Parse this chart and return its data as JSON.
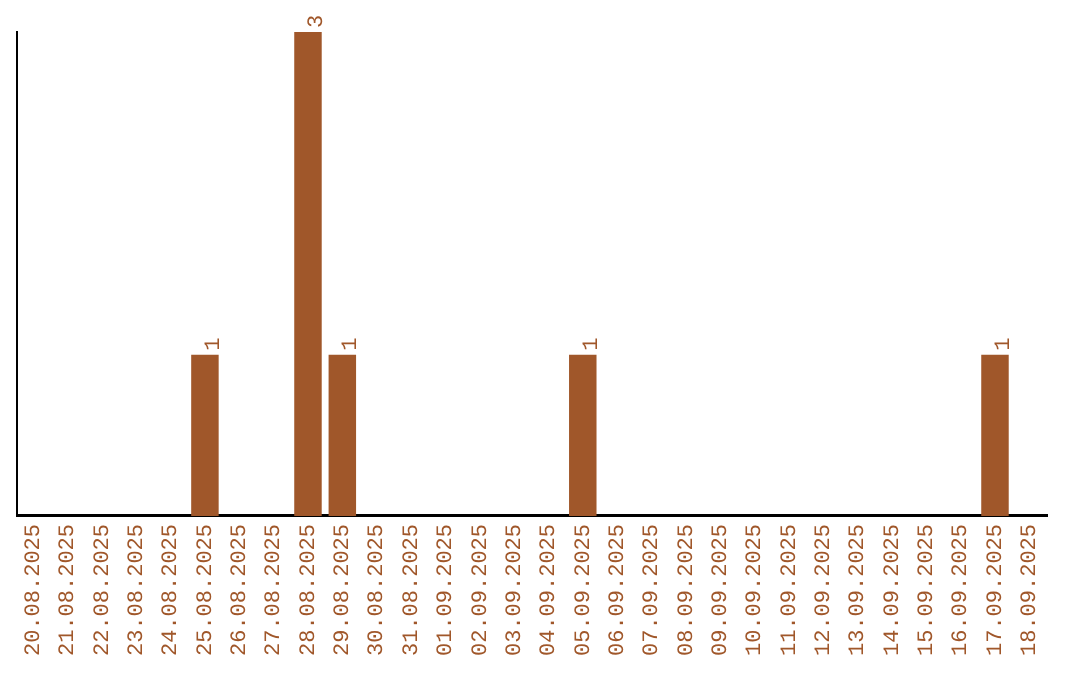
{
  "chart_data": {
    "type": "bar",
    "categories": [
      "20.08.2025",
      "21.08.2025",
      "22.08.2025",
      "23.08.2025",
      "24.08.2025",
      "25.08.2025",
      "26.08.2025",
      "27.08.2025",
      "28.08.2025",
      "29.08.2025",
      "30.08.2025",
      "31.08.2025",
      "01.09.2025",
      "02.09.2025",
      "03.09.2025",
      "04.09.2025",
      "05.09.2025",
      "06.09.2025",
      "07.09.2025",
      "08.09.2025",
      "09.09.2025",
      "10.09.2025",
      "11.09.2025",
      "12.09.2025",
      "13.09.2025",
      "14.09.2025",
      "15.09.2025",
      "16.09.2025",
      "17.09.2025",
      "18.09.2025"
    ],
    "values": [
      0,
      0,
      0,
      0,
      0,
      1,
      0,
      0,
      3,
      1,
      0,
      0,
      0,
      0,
      0,
      0,
      1,
      0,
      0,
      0,
      0,
      0,
      0,
      0,
      0,
      0,
      0,
      0,
      1,
      0
    ],
    "value_labels": [
      null,
      null,
      null,
      null,
      null,
      "1",
      null,
      null,
      "3",
      "1",
      null,
      null,
      null,
      null,
      null,
      null,
      "1",
      null,
      null,
      null,
      null,
      null,
      null,
      null,
      null,
      null,
      null,
      null,
      "1",
      null
    ],
    "color": "#a0572a",
    "grid": false,
    "tick_labels": "x",
    "legend": false
  }
}
